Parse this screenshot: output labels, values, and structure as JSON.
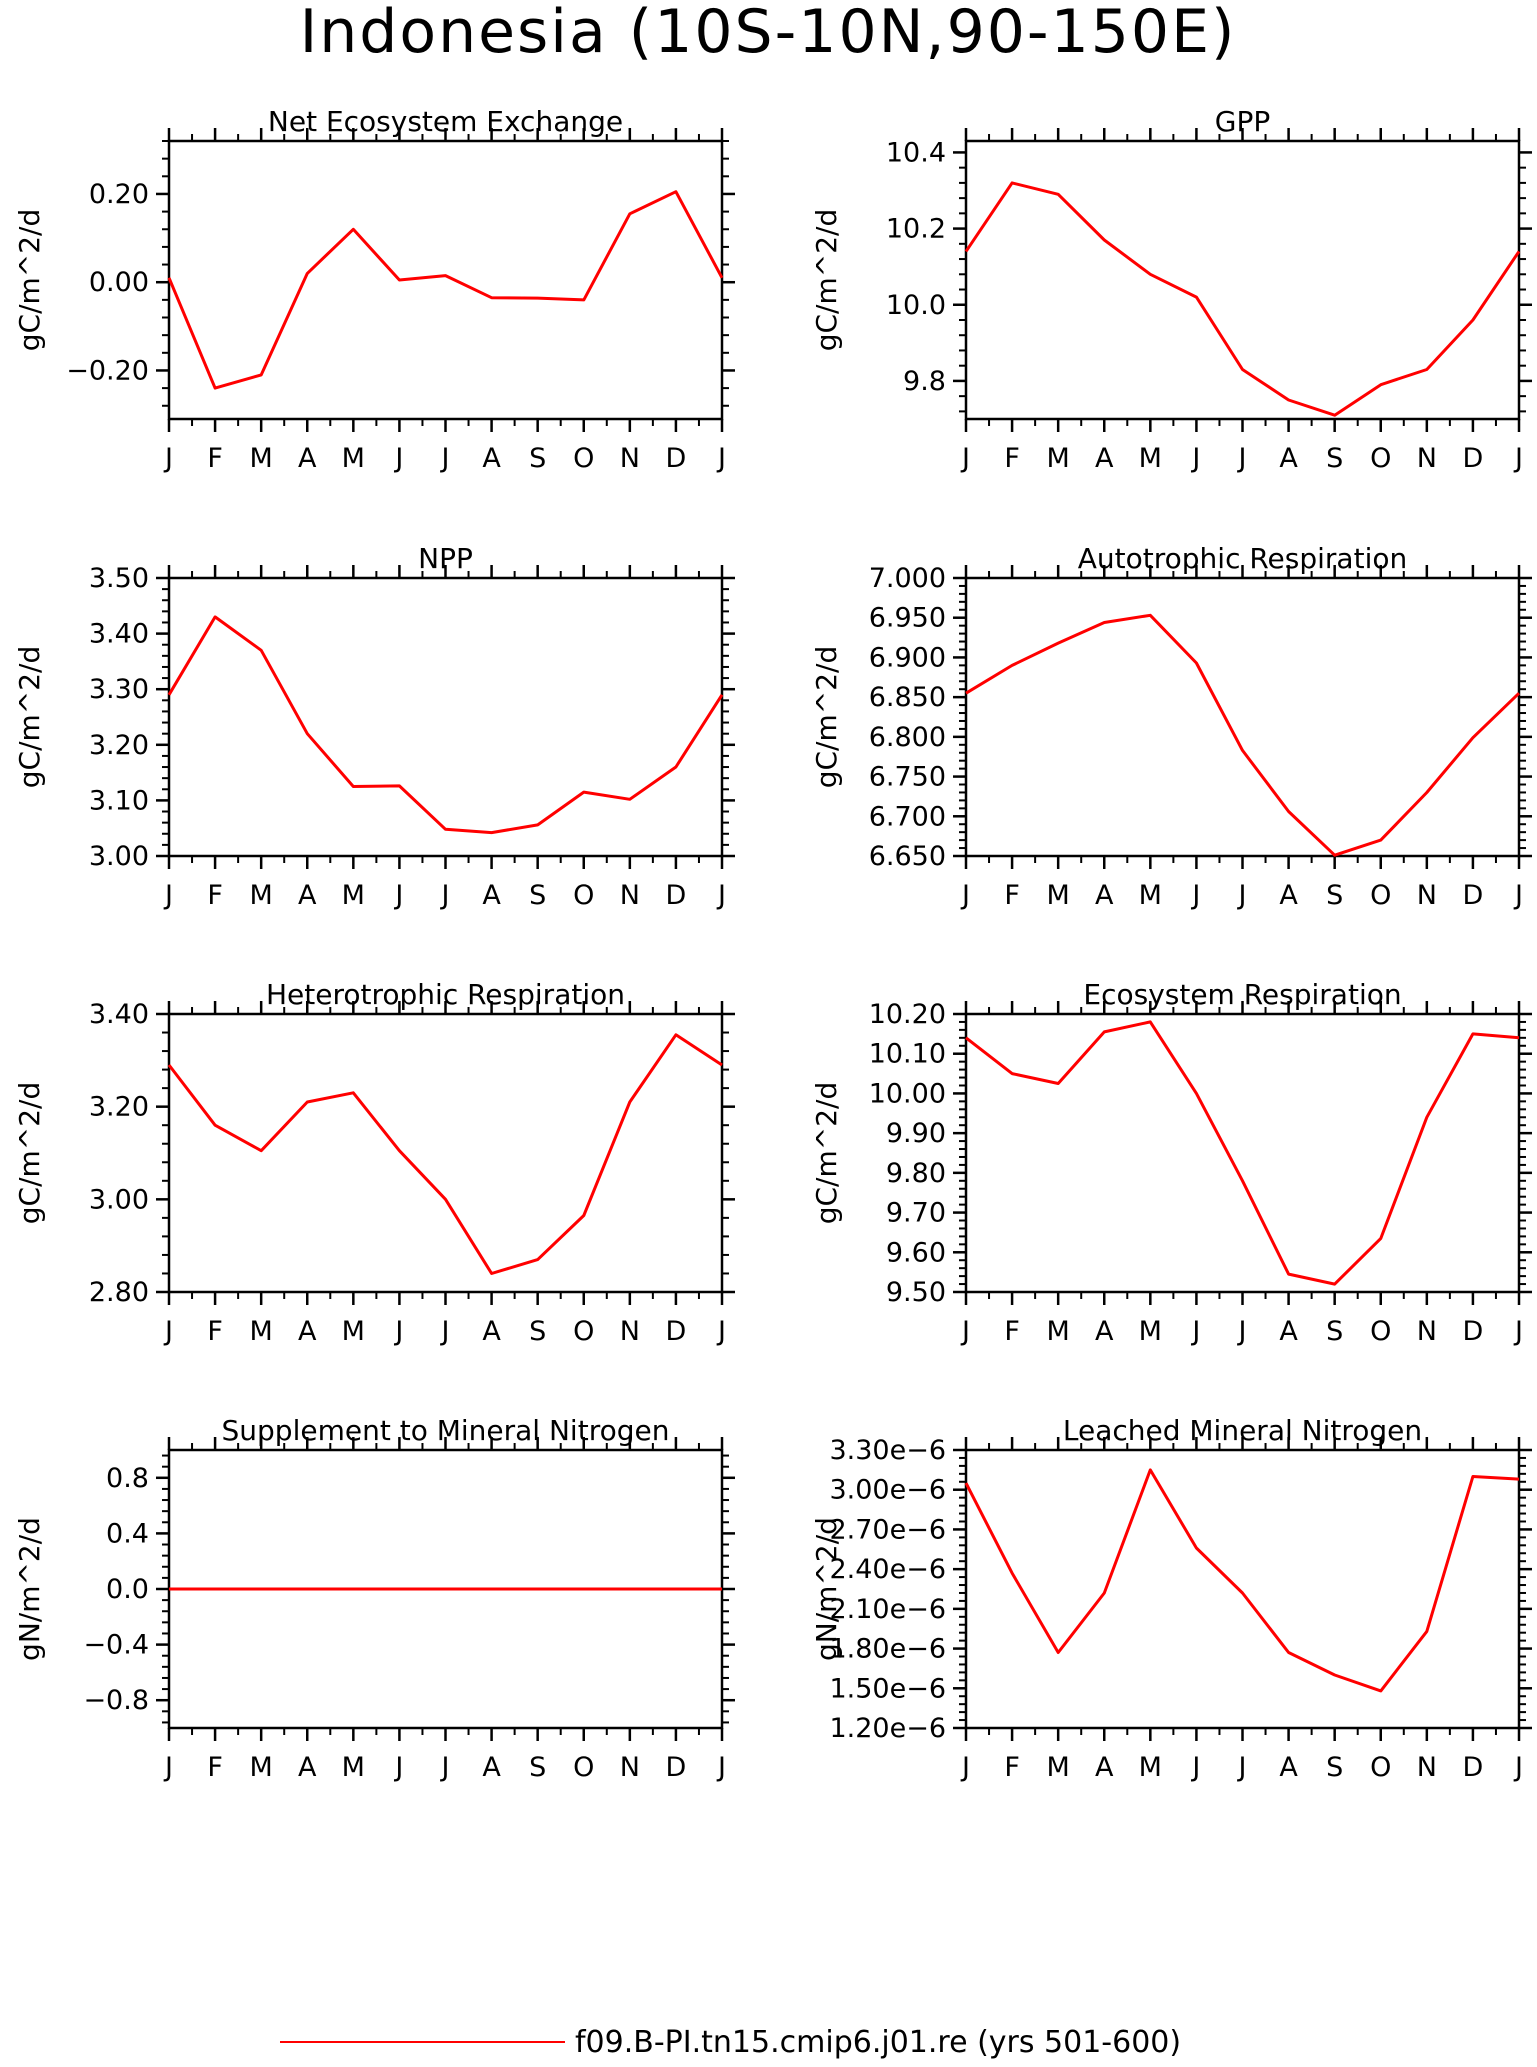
{
  "figure": {
    "title": "Indonesia (10S-10N,90-150E)",
    "legend": {
      "label": "f09.B-PI.tn15.cmip6.j01.re (yrs 501-600)",
      "color": "#ff0000"
    },
    "line_color": "#ff0000"
  },
  "chart_data": [
    {
      "type": "line",
      "title": "Net Ecosystem Exchange",
      "ylabel": "gC/m^2/d",
      "categories": [
        "J",
        "F",
        "M",
        "A",
        "M",
        "J",
        "J",
        "A",
        "S",
        "O",
        "N",
        "D",
        "J"
      ],
      "ylim": [
        -0.31,
        0.32
      ],
      "yticks": [
        -0.2,
        0.0,
        0.2
      ],
      "ytick_labels": [
        "-0.20",
        "0.00",
        "0.20"
      ],
      "series": [
        {
          "values": [
            0.01,
            -0.24,
            -0.21,
            0.02,
            0.12,
            0.005,
            0.015,
            -0.035,
            -0.036,
            -0.04,
            0.155,
            0.205,
            0.01
          ]
        }
      ]
    },
    {
      "type": "line",
      "title": "GPP",
      "ylabel": "gC/m^2/d",
      "categories": [
        "J",
        "F",
        "M",
        "A",
        "M",
        "J",
        "J",
        "A",
        "S",
        "O",
        "N",
        "D",
        "J"
      ],
      "ylim": [
        9.7,
        10.43
      ],
      "yticks": [
        9.8,
        10.0,
        10.2,
        10.4
      ],
      "ytick_labels": [
        "9.8",
        "10.0",
        "10.2",
        "10.4"
      ],
      "series": [
        {
          "values": [
            10.14,
            10.32,
            10.29,
            10.17,
            10.08,
            10.02,
            9.83,
            9.75,
            9.71,
            9.79,
            9.83,
            9.96,
            10.14
          ]
        }
      ]
    },
    {
      "type": "line",
      "title": "NPP",
      "ylabel": "gC/m^2/d",
      "categories": [
        "J",
        "F",
        "M",
        "A",
        "M",
        "J",
        "J",
        "A",
        "S",
        "O",
        "N",
        "D",
        "J"
      ],
      "ylim": [
        3.0,
        3.5
      ],
      "yticks": [
        3.0,
        3.1,
        3.2,
        3.3,
        3.4,
        3.5
      ],
      "ytick_labels": [
        "3.00",
        "3.10",
        "3.20",
        "3.30",
        "3.40",
        "3.50"
      ],
      "series": [
        {
          "values": [
            3.29,
            3.43,
            3.37,
            3.22,
            3.125,
            3.126,
            3.048,
            3.042,
            3.056,
            3.115,
            3.102,
            3.16,
            3.29
          ]
        }
      ]
    },
    {
      "type": "line",
      "title": "Autotrophic Respiration",
      "ylabel": "gC/m^2/d",
      "categories": [
        "J",
        "F",
        "M",
        "A",
        "M",
        "J",
        "J",
        "A",
        "S",
        "O",
        "N",
        "D",
        "J"
      ],
      "ylim": [
        6.65,
        7.0
      ],
      "yticks": [
        6.65,
        6.7,
        6.75,
        6.8,
        6.85,
        6.9,
        6.95,
        7.0
      ],
      "ytick_labels": [
        "6.650",
        "6.700",
        "6.750",
        "6.800",
        "6.850",
        "6.900",
        "6.950",
        "7.000"
      ],
      "series": [
        {
          "values": [
            6.855,
            6.89,
            6.918,
            6.944,
            6.953,
            6.893,
            6.783,
            6.706,
            6.651,
            6.67,
            6.73,
            6.799,
            6.855
          ]
        }
      ]
    },
    {
      "type": "line",
      "title": "Heterotrophic Respiration",
      "ylabel": "gC/m^2/d",
      "categories": [
        "J",
        "F",
        "M",
        "A",
        "M",
        "J",
        "J",
        "A",
        "S",
        "O",
        "N",
        "D",
        "J"
      ],
      "ylim": [
        2.8,
        3.4
      ],
      "yticks": [
        2.8,
        3.0,
        3.2,
        3.4
      ],
      "ytick_labels": [
        "2.80",
        "3.00",
        "3.20",
        "3.40"
      ],
      "series": [
        {
          "values": [
            3.29,
            3.16,
            3.105,
            3.21,
            3.23,
            3.105,
            3.0,
            2.84,
            2.87,
            2.965,
            3.21,
            3.355,
            3.29
          ]
        }
      ]
    },
    {
      "type": "line",
      "title": "Ecosystem Respiration",
      "ylabel": "gC/m^2/d",
      "categories": [
        "J",
        "F",
        "M",
        "A",
        "M",
        "J",
        "J",
        "A",
        "S",
        "O",
        "N",
        "D",
        "J"
      ],
      "ylim": [
        9.5,
        10.2
      ],
      "yticks": [
        9.5,
        9.6,
        9.7,
        9.8,
        9.9,
        10.0,
        10.1,
        10.2
      ],
      "ytick_labels": [
        "9.50",
        "9.60",
        "9.70",
        "9.80",
        "9.90",
        "10.00",
        "10.10",
        "10.20"
      ],
      "series": [
        {
          "values": [
            10.14,
            10.05,
            10.025,
            10.155,
            10.18,
            10.0,
            9.78,
            9.545,
            9.52,
            9.635,
            9.94,
            10.15,
            10.14
          ]
        }
      ]
    },
    {
      "type": "line",
      "title": "Supplement to Mineral Nitrogen",
      "ylabel": "gN/m^2/d",
      "categories": [
        "J",
        "F",
        "M",
        "A",
        "M",
        "J",
        "J",
        "A",
        "S",
        "O",
        "N",
        "D",
        "J"
      ],
      "ylim": [
        -1.0,
        1.0
      ],
      "yticks": [
        -0.8,
        -0.4,
        0.0,
        0.4,
        0.8
      ],
      "ytick_labels": [
        "-0.8",
        "-0.4",
        "0.0",
        "0.4",
        "0.8"
      ],
      "series": [
        {
          "values": [
            0,
            0,
            0,
            0,
            0,
            0,
            0,
            0,
            0,
            0,
            0,
            0,
            0
          ]
        }
      ]
    },
    {
      "type": "line",
      "title": "Leached Mineral Nitrogen",
      "ylabel": "gN/m^2/d",
      "categories": [
        "J",
        "F",
        "M",
        "A",
        "M",
        "J",
        "J",
        "A",
        "S",
        "O",
        "N",
        "D",
        "J"
      ],
      "ylim": [
        1.2e-06,
        3.3e-06
      ],
      "yticks": [
        1.2e-06,
        1.5e-06,
        1.8e-06,
        2.1e-06,
        2.4e-06,
        2.7e-06,
        3e-06,
        3.3e-06
      ],
      "ytick_labels": [
        "1.20e-6",
        "1.50e-6",
        "1.80e-6",
        "2.10e-6",
        "2.40e-6",
        "2.70e-6",
        "3.00e-6",
        "3.30e-6"
      ],
      "series": [
        {
          "values": [
            3.05e-06,
            2.37e-06,
            1.77e-06,
            2.22e-06,
            3.15e-06,
            2.56e-06,
            2.22e-06,
            1.77e-06,
            1.6e-06,
            1.48e-06,
            1.93e-06,
            3.1e-06,
            3.08e-06
          ]
        }
      ]
    }
  ]
}
